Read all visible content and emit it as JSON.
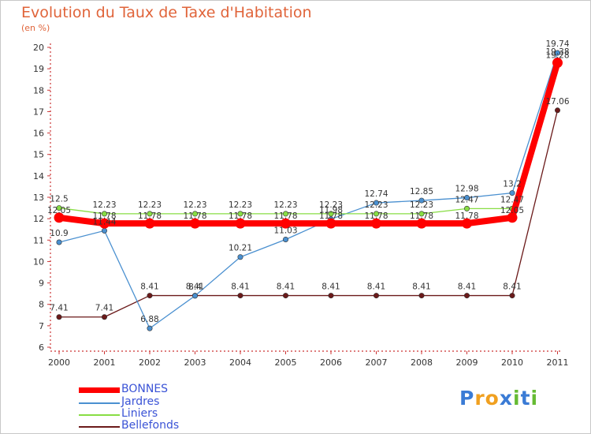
{
  "chart_data": {
    "type": "line",
    "title": "Evolution du Taux de Taxe d'Habitation",
    "unit_label": "(en %)",
    "categories": [
      "2000",
      "2001",
      "2002",
      "2003",
      "2004",
      "2005",
      "2006",
      "2007",
      "2008",
      "2009",
      "2010",
      "2011"
    ],
    "ylim": [
      6,
      20
    ],
    "yticks": [
      "6",
      "7",
      "8",
      "9",
      "10",
      "11",
      "12",
      "13",
      "14",
      "15",
      "16",
      "17",
      "18",
      "19",
      "20"
    ],
    "grid": false,
    "legend_position": "bottom-left",
    "series": [
      {
        "name": "BONNES",
        "color": "#ff0000",
        "values": [
          12.05,
          11.78,
          11.78,
          11.78,
          11.78,
          11.78,
          11.78,
          11.78,
          11.78,
          11.78,
          12.05,
          19.28
        ],
        "labels": [
          "12.05",
          "11.78",
          "11.78",
          "11.78",
          "11.78",
          "11.78",
          "11.78",
          "11.78",
          "11.78",
          "11.78",
          "12.05",
          "19.28"
        ]
      },
      {
        "name": "Jardres",
        "color": "#4a90d0",
        "values": [
          10.9,
          11.44,
          6.88,
          8.4,
          10.21,
          11.03,
          11.98,
          12.74,
          12.85,
          12.98,
          13.2,
          19.74
        ],
        "labels": [
          "10.9",
          "11.44",
          "6.88",
          "8.4",
          "10.21",
          "11.03",
          "11.98",
          "12.74",
          "12.85",
          "12.98",
          "13.2",
          "19.74"
        ]
      },
      {
        "name": "Liniers",
        "color": "#88dd44",
        "values": [
          12.5,
          12.23,
          12.23,
          12.23,
          12.23,
          12.23,
          12.23,
          12.23,
          12.23,
          12.47,
          12.47,
          19.38
        ],
        "labels": [
          "12.5",
          "12.23",
          "12.23",
          "12.23",
          "12.23",
          "12.23",
          "12.23",
          "12.23",
          "12.23",
          "12.47",
          "12.47",
          "19.38"
        ]
      },
      {
        "name": "Bellefonds",
        "color": "#6b1a1a",
        "values": [
          7.41,
          7.41,
          8.41,
          8.41,
          8.41,
          8.41,
          8.41,
          8.41,
          8.41,
          8.41,
          8.41,
          17.06
        ],
        "labels": [
          "7.41",
          "7.41",
          "8.41",
          "8.41",
          "8.41",
          "8.41",
          "8.41",
          "8.41",
          "8.41",
          "8.41",
          "8.41",
          "17.06"
        ]
      }
    ]
  },
  "legend": [
    {
      "name": "BONNES",
      "color": "#ff0000"
    },
    {
      "name": "Jardres",
      "color": "#4a90d0"
    },
    {
      "name": "Liniers",
      "color": "#88dd44"
    },
    {
      "name": "Bellefonds",
      "color": "#6b1a1a"
    }
  ],
  "brand": {
    "letters": [
      "P",
      "r",
      "o",
      "x",
      "i",
      "t",
      "i"
    ],
    "colors": [
      "#3a7bd5",
      "#f0a020",
      "#f0a020",
      "#3a7bd5",
      "#66bb33",
      "#3a7bd5",
      "#66bb33"
    ]
  }
}
